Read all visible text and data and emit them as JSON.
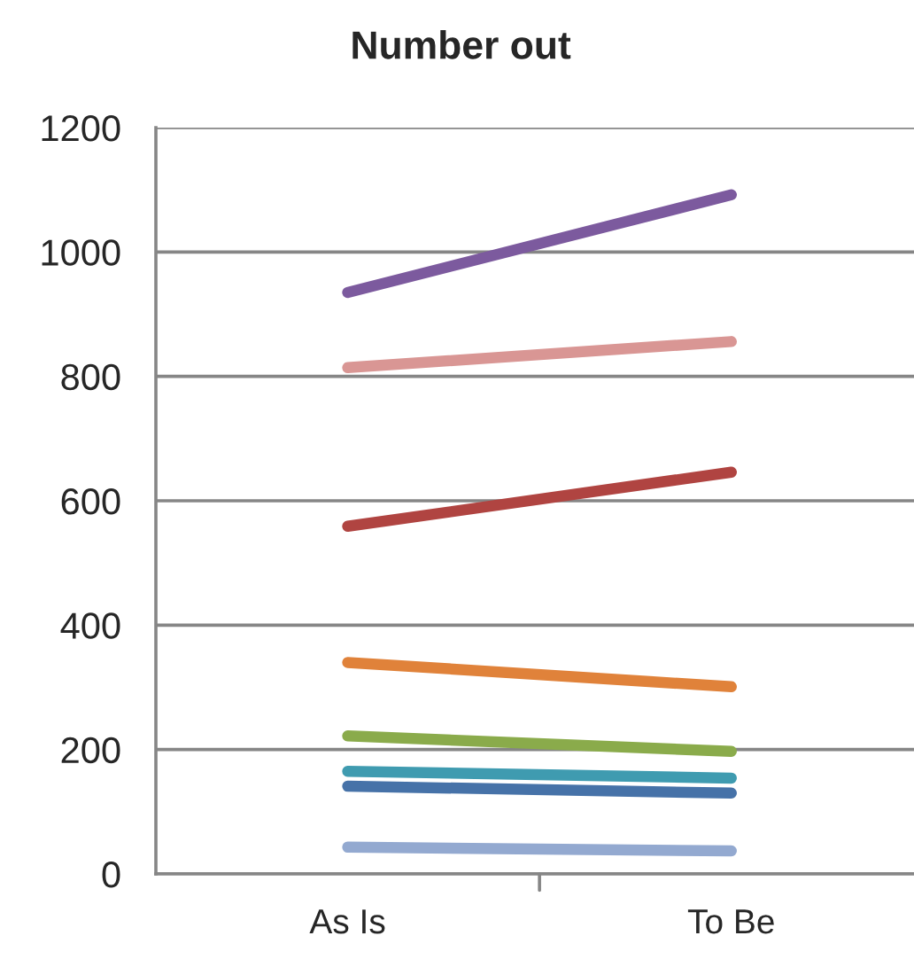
{
  "chart_data": {
    "type": "line",
    "title": "Number out",
    "categories": [
      "As Is",
      "To Be"
    ],
    "ylim": [
      0,
      1200
    ],
    "yticks": [
      0,
      200,
      400,
      600,
      800,
      1000,
      1200
    ],
    "grid": "y",
    "marker": "none",
    "line_style": "solid",
    "series": [
      {
        "color": "#7c5a9e",
        "values": [
          935,
          1092
        ]
      },
      {
        "color": "#d99694",
        "values": [
          814,
          856
        ]
      },
      {
        "color": "#b04441",
        "values": [
          559,
          646
        ]
      },
      {
        "color": "#e0823a",
        "values": [
          340,
          301
        ]
      },
      {
        "color": "#8aab4b",
        "values": [
          222,
          197
        ]
      },
      {
        "color": "#3f9bb0",
        "values": [
          165,
          154
        ]
      },
      {
        "color": "#4672a8",
        "values": [
          141,
          130
        ]
      },
      {
        "color": "#93a9d0",
        "values": [
          43,
          37
        ]
      }
    ]
  }
}
